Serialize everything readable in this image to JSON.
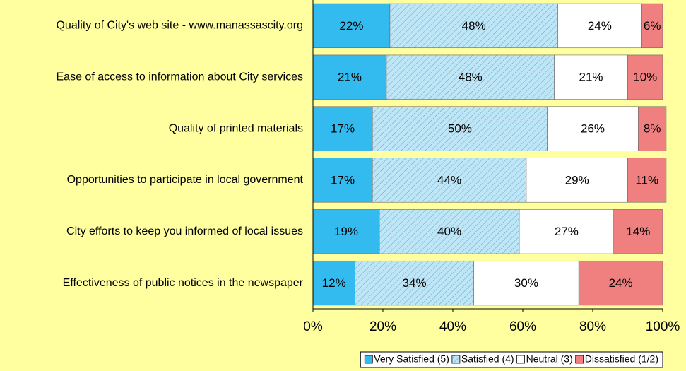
{
  "chart_data": {
    "type": "stacked_barh",
    "categories": [
      "Quality of City's web site - www.manassascity.org",
      "Ease of access to information about City services",
      "Quality of printed materials",
      "Opportunities to participate in local government",
      "City efforts to keep you informed of local issues",
      "Effectiveness of public notices in the newspaper"
    ],
    "series": [
      {
        "name": "Very Satisfied (5)",
        "color": "#33bbf0",
        "values": [
          22,
          21,
          17,
          17,
          19,
          12
        ],
        "value_labels": [
          "22%",
          "21%",
          "17%",
          "17%",
          "19%",
          "12%"
        ]
      },
      {
        "name": "Satisfied (4)",
        "color": "#bfe6f6",
        "pattern": "hatch",
        "values": [
          48,
          48,
          50,
          44,
          40,
          34
        ],
        "value_labels": [
          "48%",
          "48%",
          "50%",
          "44%",
          "40%",
          "34%"
        ]
      },
      {
        "name": "Neutral (3)",
        "color": "#ffffff",
        "values": [
          24,
          21,
          26,
          29,
          27,
          30
        ],
        "value_labels": [
          "24%",
          "21%",
          "26%",
          "29%",
          "27%",
          "30%"
        ]
      },
      {
        "name": "Dissatisfied (1/2)",
        "color": "#f08080",
        "values": [
          6,
          10,
          8,
          11,
          14,
          24
        ],
        "value_labels": [
          "6%",
          "10%",
          "8%",
          "11%",
          "14%",
          "24%"
        ]
      }
    ],
    "xlim": [
      0,
      100
    ],
    "xticks": [
      {
        "value": 0,
        "label": "0%"
      },
      {
        "value": 20,
        "label": "20%"
      },
      {
        "value": 40,
        "label": "40%"
      },
      {
        "value": 60,
        "label": "60%"
      },
      {
        "value": 80,
        "label": "80%"
      },
      {
        "value": 100,
        "label": "100%"
      }
    ]
  }
}
